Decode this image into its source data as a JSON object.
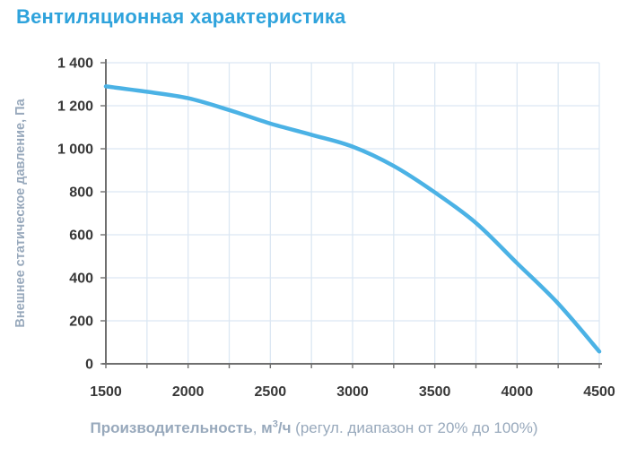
{
  "header": {
    "title": "Вентиляционная характеристика"
  },
  "axes": {
    "y_title": "Внешнее статическое давление, Па",
    "x_title_name": "Производительность",
    "x_title_sep": ", ",
    "x_unit_base": "м",
    "x_unit_sup": "3",
    "x_unit_rest": "/ч",
    "x_title_note": " (регул. диапазон от 20% до 100%)"
  },
  "chart_data": {
    "type": "line",
    "title": "Вентиляционная характеристика",
    "xlabel": "Производительность, м3/ч (регул. диапазон от 20% до 100%)",
    "ylabel": "Внешнее статическое давление, Па",
    "xlim": [
      1500,
      4500
    ],
    "ylim": [
      0,
      1400
    ],
    "xgrid_step": 250,
    "ygrid_step": 200,
    "grid": true,
    "legend": false,
    "series": [
      {
        "name": "fan-curve",
        "x": [
          1500,
          1750,
          2000,
          2250,
          2500,
          2750,
          3000,
          3250,
          3500,
          3750,
          4000,
          4250,
          4500
        ],
        "y": [
          1290,
          1265,
          1235,
          1180,
          1117,
          1065,
          1010,
          920,
          797,
          655,
          468,
          280,
          57
        ]
      }
    ],
    "xticks": [
      {
        "v": 1500,
        "label": "1500"
      },
      {
        "v": 2000,
        "label": "2000"
      },
      {
        "v": 2500,
        "label": "2500"
      },
      {
        "v": 3000,
        "label": "3000"
      },
      {
        "v": 3500,
        "label": "3500"
      },
      {
        "v": 4000,
        "label": "4000"
      },
      {
        "v": 4500,
        "label": "4500"
      }
    ],
    "yticks": [
      {
        "v": 0,
        "label": "0"
      },
      {
        "v": 200,
        "label": "200"
      },
      {
        "v": 400,
        "label": "400"
      },
      {
        "v": 600,
        "label": "600"
      },
      {
        "v": 800,
        "label": "800"
      },
      {
        "v": 1000,
        "label": "1 000"
      },
      {
        "v": 1200,
        "label": "1 200"
      },
      {
        "v": 1400,
        "label": "1 400"
      }
    ],
    "colors": {
      "line": "#4BB2E5",
      "grid": "#DCE7F3",
      "axis": "#6F6F6F",
      "tick_text": "#373737",
      "title": "#2FA3DC",
      "axis_label": "#98A9BC"
    }
  }
}
